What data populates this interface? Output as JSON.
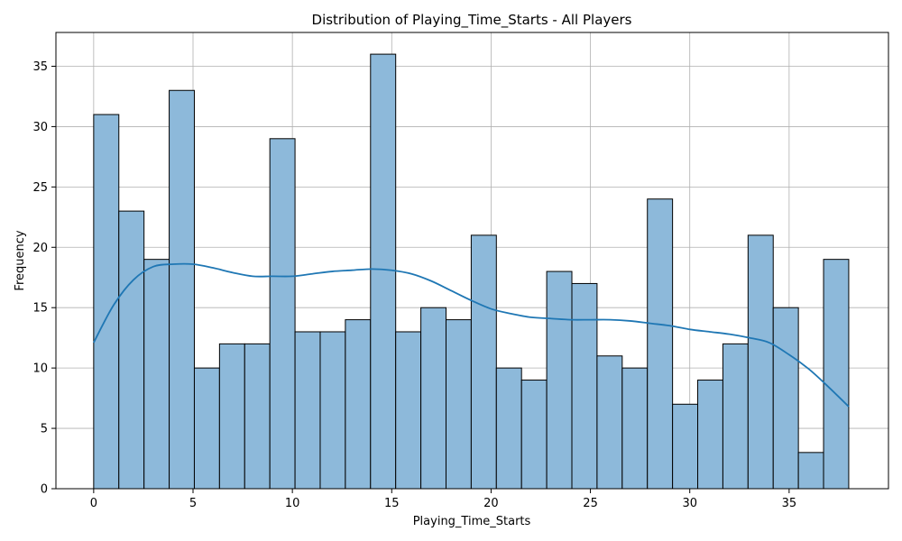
{
  "chart_data": {
    "type": "bar",
    "title": "Distribution of Playing_Time_Starts - All Players",
    "xlabel": "Playing_Time_Starts",
    "ylabel": "Frequency",
    "xlim": [
      -1.9,
      40
    ],
    "ylim": [
      0,
      37.8
    ],
    "xticks": [
      0,
      5,
      10,
      15,
      20,
      25,
      30,
      35
    ],
    "yticks": [
      0,
      5,
      10,
      15,
      20,
      25,
      30,
      35
    ],
    "grid": true,
    "bar_color": "#8db9da",
    "bar_edge_color": "#000000",
    "kde_color": "#1f77b4",
    "bins": {
      "start": 0,
      "end": 38,
      "count": 30,
      "values": [
        31,
        23,
        19,
        33,
        10,
        12,
        12,
        29,
        13,
        13,
        14,
        36,
        13,
        15,
        14,
        21,
        10,
        9,
        18,
        17,
        11,
        10,
        24,
        7,
        9,
        12,
        21,
        15,
        3,
        19
      ]
    },
    "kde": {
      "name": "",
      "x": [
        0,
        1,
        2,
        3,
        4,
        5,
        6,
        7,
        8,
        9,
        10,
        11,
        12,
        13,
        14,
        15,
        16,
        17,
        18,
        19,
        20,
        21,
        22,
        23,
        24,
        25,
        26,
        27,
        28,
        29,
        30,
        31,
        32,
        33,
        34,
        35,
        36,
        37,
        38
      ],
      "y": [
        12.1,
        15.2,
        17.3,
        18.4,
        18.6,
        18.6,
        18.3,
        17.9,
        17.6,
        17.6,
        17.6,
        17.8,
        18.0,
        18.1,
        18.2,
        18.1,
        17.8,
        17.2,
        16.4,
        15.6,
        14.9,
        14.5,
        14.2,
        14.1,
        14.0,
        14.0,
        14.0,
        13.9,
        13.7,
        13.5,
        13.2,
        13.0,
        12.8,
        12.5,
        12.1,
        11.1,
        9.9,
        8.4,
        6.8
      ]
    }
  }
}
